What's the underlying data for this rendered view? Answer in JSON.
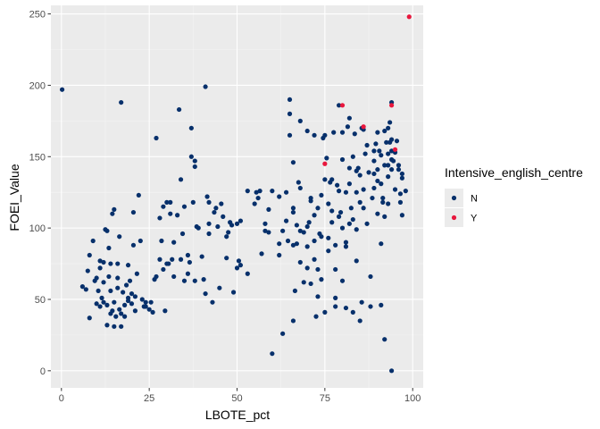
{
  "chart_data": {
    "type": "scatter",
    "xlabel": "LBOTE_pct",
    "ylabel": "FOEI_Value",
    "xlim": [
      -3,
      103
    ],
    "ylim": [
      -12,
      256
    ],
    "x_ticks": [
      0,
      25,
      50,
      75,
      100
    ],
    "y_ticks": [
      0,
      50,
      100,
      150,
      200,
      250
    ],
    "x_tick_labels": [
      "0",
      "25",
      "50",
      "75",
      "100"
    ],
    "y_tick_labels": [
      "0",
      "50",
      "100",
      "150",
      "200",
      "250"
    ],
    "grid": true,
    "legend": {
      "title": "Intensive_english_centre",
      "position": "right",
      "entries": [
        {
          "label": "N",
          "color": "#07306b"
        },
        {
          "label": "Y",
          "color": "#e8173d"
        }
      ]
    },
    "series": [
      {
        "name": "N",
        "color": "#07306b",
        "points": [
          [
            0.2,
            197
          ],
          [
            6,
            59
          ],
          [
            7,
            57
          ],
          [
            7.5,
            70
          ],
          [
            8,
            81
          ],
          [
            8,
            37
          ],
          [
            9,
            91
          ],
          [
            9.5,
            63
          ],
          [
            10,
            47
          ],
          [
            10,
            65
          ],
          [
            10.5,
            56
          ],
          [
            11,
            72
          ],
          [
            11,
            45
          ],
          [
            11,
            77
          ],
          [
            11.5,
            51
          ],
          [
            12,
            76
          ],
          [
            12,
            48
          ],
          [
            12,
            62
          ],
          [
            12.5,
            99
          ],
          [
            13,
            98
          ],
          [
            13,
            46
          ],
          [
            13,
            32
          ],
          [
            13.5,
            66
          ],
          [
            13.5,
            86
          ],
          [
            14,
            40
          ],
          [
            14,
            56
          ],
          [
            14,
            75
          ],
          [
            14.5,
            110
          ],
          [
            14.5,
            42
          ],
          [
            15,
            113
          ],
          [
            15,
            48
          ],
          [
            15,
            31
          ],
          [
            15.5,
            38
          ],
          [
            16,
            58
          ],
          [
            16,
            65
          ],
          [
            16,
            75
          ],
          [
            16.5,
            94
          ],
          [
            16.5,
            43
          ],
          [
            17,
            40
          ],
          [
            17,
            31
          ],
          [
            17,
            188
          ],
          [
            17.5,
            55
          ],
          [
            18,
            46
          ],
          [
            18,
            38
          ],
          [
            18.5,
            60
          ],
          [
            19,
            49
          ],
          [
            19,
            51
          ],
          [
            19,
            74
          ],
          [
            19.5,
            63
          ],
          [
            20,
            47
          ],
          [
            20,
            54
          ],
          [
            20.5,
            88
          ],
          [
            20.5,
            111
          ],
          [
            21,
            42
          ],
          [
            21,
            52
          ],
          [
            21.5,
            68
          ],
          [
            22,
            123
          ],
          [
            22.5,
            91
          ],
          [
            23,
            50
          ],
          [
            23.5,
            45
          ],
          [
            24,
            48
          ],
          [
            24,
            45
          ],
          [
            25,
            43
          ],
          [
            25.5,
            48
          ],
          [
            26,
            41
          ],
          [
            26.5,
            64
          ],
          [
            27,
            163
          ],
          [
            27,
            66
          ],
          [
            28,
            78
          ],
          [
            28,
            107
          ],
          [
            28.5,
            91
          ],
          [
            29,
            115
          ],
          [
            29,
            71
          ],
          [
            29.5,
            42
          ],
          [
            30,
            75
          ],
          [
            30,
            118
          ],
          [
            30.5,
            75
          ],
          [
            31,
            118
          ],
          [
            31,
            110
          ],
          [
            31.5,
            78
          ],
          [
            32,
            90
          ],
          [
            32,
            66
          ],
          [
            33,
            109
          ],
          [
            33.5,
            183
          ],
          [
            34,
            134
          ],
          [
            34,
            78
          ],
          [
            34.5,
            96
          ],
          [
            35,
            63
          ],
          [
            35,
            115
          ],
          [
            36,
            81
          ],
          [
            36,
            68
          ],
          [
            36.5,
            76
          ],
          [
            37,
            150
          ],
          [
            37,
            170
          ],
          [
            37.5,
            118
          ],
          [
            38,
            147
          ],
          [
            38,
            143
          ],
          [
            38,
            63
          ],
          [
            38.5,
            101
          ],
          [
            39,
            100
          ],
          [
            40,
            80
          ],
          [
            40.5,
            64
          ],
          [
            41,
            54
          ],
          [
            41,
            199
          ],
          [
            41.5,
            122
          ],
          [
            42,
            96
          ],
          [
            42,
            103
          ],
          [
            42,
            118
          ],
          [
            43,
            48
          ],
          [
            43.5,
            111
          ],
          [
            44,
            114
          ],
          [
            44.5,
            101
          ],
          [
            45,
            58
          ],
          [
            45.5,
            117
          ],
          [
            46,
            108
          ],
          [
            47,
            79
          ],
          [
            47,
            94
          ],
          [
            47.5,
            97
          ],
          [
            48,
            104
          ],
          [
            48.5,
            102
          ],
          [
            49,
            55
          ],
          [
            50,
            72
          ],
          [
            50,
            103
          ],
          [
            50.5,
            77
          ],
          [
            51,
            105
          ],
          [
            51,
            74
          ],
          [
            53,
            68
          ],
          [
            53,
            126
          ],
          [
            55,
            117
          ],
          [
            55.5,
            125
          ],
          [
            56,
            121
          ],
          [
            56.5,
            126
          ],
          [
            57,
            82
          ],
          [
            58,
            98
          ],
          [
            58,
            103
          ],
          [
            59,
            113
          ],
          [
            59,
            97
          ],
          [
            60,
            12
          ],
          [
            60,
            126
          ],
          [
            62,
            89
          ],
          [
            62,
            122
          ],
          [
            62,
            81
          ],
          [
            63,
            26
          ],
          [
            63,
            98
          ],
          [
            64,
            125
          ],
          [
            64,
            105
          ],
          [
            64.5,
            91
          ],
          [
            65,
            190
          ],
          [
            65,
            180
          ],
          [
            65,
            165
          ],
          [
            66,
            146
          ],
          [
            66,
            88
          ],
          [
            66,
            114
          ],
          [
            66,
            111
          ],
          [
            66,
            35
          ],
          [
            66.5,
            56
          ],
          [
            67,
            102
          ],
          [
            67,
            89
          ],
          [
            67.5,
            132
          ],
          [
            68,
            175
          ],
          [
            68,
            98
          ],
          [
            68,
            76
          ],
          [
            68,
            128
          ],
          [
            69,
            62
          ],
          [
            69,
            97
          ],
          [
            70,
            101
          ],
          [
            70,
            168
          ],
          [
            70,
            87
          ],
          [
            70,
            72
          ],
          [
            70.5,
            104
          ],
          [
            71,
            121
          ],
          [
            71,
            119
          ],
          [
            71,
            61
          ],
          [
            72,
            91
          ],
          [
            72,
            78
          ],
          [
            72,
            165
          ],
          [
            72,
            109
          ],
          [
            72.5,
            38
          ],
          [
            73,
            52
          ],
          [
            73,
            114
          ],
          [
            73,
            71
          ],
          [
            73.5,
            96
          ],
          [
            74,
            123
          ],
          [
            74,
            94
          ],
          [
            74,
            64
          ],
          [
            74.5,
            163
          ],
          [
            75,
            41
          ],
          [
            75,
            165
          ],
          [
            75,
            134
          ],
          [
            75.5,
            149
          ],
          [
            76,
            93
          ],
          [
            76,
            84
          ],
          [
            76,
            117
          ],
          [
            76.5,
            132
          ],
          [
            77,
            112
          ],
          [
            77,
            134
          ],
          [
            77,
            104
          ],
          [
            77.5,
            167
          ],
          [
            78,
            71
          ],
          [
            78,
            45
          ],
          [
            78,
            88
          ],
          [
            78,
            51
          ],
          [
            78.5,
            130
          ],
          [
            79,
            126
          ],
          [
            79,
            186
          ],
          [
            79,
            108
          ],
          [
            79.5,
            111
          ],
          [
            80,
            148
          ],
          [
            80,
            167
          ],
          [
            80,
            100
          ],
          [
            80,
            63
          ],
          [
            81,
            44
          ],
          [
            81,
            87
          ],
          [
            81,
            125
          ],
          [
            81,
            90
          ],
          [
            81.5,
            171
          ],
          [
            82,
            177
          ],
          [
            82,
            142
          ],
          [
            82,
            131
          ],
          [
            82,
            103
          ],
          [
            82.5,
            114
          ],
          [
            83,
            150
          ],
          [
            83,
            106
          ],
          [
            83,
            41
          ],
          [
            83.5,
            166
          ],
          [
            84,
            125
          ],
          [
            84,
            99
          ],
          [
            84,
            140
          ],
          [
            84,
            77
          ],
          [
            84.5,
            142
          ],
          [
            85,
            118
          ],
          [
            85,
            137
          ],
          [
            85,
            35
          ],
          [
            85.5,
            170
          ],
          [
            85.5,
            48
          ],
          [
            86,
            127
          ],
          [
            86,
            169
          ],
          [
            86,
            114
          ],
          [
            86.5,
            152
          ],
          [
            87,
            158
          ],
          [
            87,
            103
          ],
          [
            87.5,
            139
          ],
          [
            88,
            66
          ],
          [
            88,
            45
          ],
          [
            88.5,
            121
          ],
          [
            89,
            138
          ],
          [
            89,
            147
          ],
          [
            89,
            128
          ],
          [
            89,
            154
          ],
          [
            89.5,
            159
          ],
          [
            90,
            133
          ],
          [
            90,
            167
          ],
          [
            90,
            141
          ],
          [
            90,
            110
          ],
          [
            90.5,
            154
          ],
          [
            91,
            151
          ],
          [
            91,
            131
          ],
          [
            91,
            46
          ],
          [
            91,
            89
          ],
          [
            91.5,
            121
          ],
          [
            91.5,
            118
          ],
          [
            92,
            168
          ],
          [
            92,
            22
          ],
          [
            92,
            108
          ],
          [
            92,
            144
          ],
          [
            92.5,
            160
          ],
          [
            93,
            144
          ],
          [
            93,
            117
          ],
          [
            93,
            136
          ],
          [
            93,
            152
          ],
          [
            93,
            170
          ],
          [
            93.5,
            160
          ],
          [
            93.5,
            174
          ],
          [
            94,
            162
          ],
          [
            94,
            148
          ],
          [
            94,
            141
          ],
          [
            94,
            154
          ],
          [
            94,
            188
          ],
          [
            94,
            0
          ],
          [
            94.5,
            147
          ],
          [
            95,
            153
          ],
          [
            95,
            127
          ],
          [
            95.5,
            161
          ],
          [
            96,
            144
          ],
          [
            96,
            141
          ],
          [
            96.5,
            124
          ],
          [
            96.5,
            118
          ],
          [
            97,
            135
          ],
          [
            97,
            109
          ],
          [
            97,
            138
          ],
          [
            98,
            126
          ]
        ]
      },
      {
        "name": "Y",
        "color": "#e8173d",
        "points": [
          [
            75,
            145
          ],
          [
            80,
            186
          ],
          [
            86,
            171
          ],
          [
            94,
            186
          ],
          [
            95,
            155
          ],
          [
            99,
            248
          ]
        ]
      }
    ]
  }
}
